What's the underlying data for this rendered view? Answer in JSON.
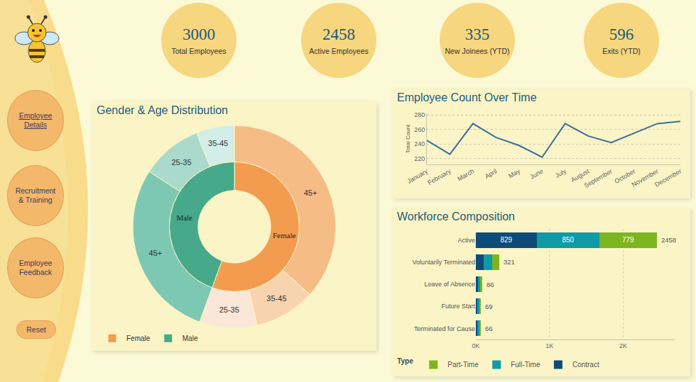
{
  "sidebar": {
    "nav": [
      "Employee Details",
      "Recruitment & Training",
      "Employee Feedback"
    ],
    "reset": "Reset"
  },
  "kpis": [
    {
      "value": 3000,
      "label": "Total Employees"
    },
    {
      "value": 2458,
      "label": "Active Employees"
    },
    {
      "value": 335,
      "label": "New Joinees (YTD)"
    },
    {
      "value": 596,
      "label": "Exits (YTD)"
    }
  ],
  "chart_data": [
    {
      "type": "pie",
      "title": "Gender & Age Distribution",
      "legend": "bottom left",
      "series": [
        {
          "name": "Female",
          "color": "#F39C50",
          "categories": [
            "45+",
            "35-45",
            "25-35"
          ],
          "values": [
            1100,
            292,
            275
          ],
          "colors": [
            "#F5BC85",
            "#F8D3B0",
            "#FBE7D7"
          ]
        },
        {
          "name": "Male",
          "color": "#45A98A",
          "categories": [
            "45+",
            "25-35",
            "35-45"
          ],
          "values": [
            858,
            292,
            183
          ],
          "colors": [
            "#7DC8B3",
            "#A9DACB",
            "#D3EDE8"
          ]
        }
      ]
    },
    {
      "type": "line",
      "title": "Employee Count Over Time",
      "ylabel": "Total Count",
      "categories": [
        "January",
        "February",
        "March",
        "April",
        "May",
        "June",
        "July",
        "August",
        "September",
        "October",
        "November",
        "December"
      ],
      "values": [
        245,
        226,
        268,
        249,
        238,
        222,
        268,
        251,
        242,
        255,
        268,
        271
      ],
      "color": "#3A6E9E",
      "ylim": [
        212,
        282
      ],
      "yticks": [
        220,
        240,
        260,
        280
      ],
      "grid": true
    },
    {
      "type": "bar",
      "title": "Workforce Composition",
      "orientation": "horizontal",
      "stacked": true,
      "data_labels": true,
      "categories": [
        "Active",
        "Voluntarily Terminated",
        "Leave of Absence",
        "Future Start",
        "Terminated for Cause"
      ],
      "series": [
        {
          "name": "Contract",
          "color": "#0D4C7A",
          "values": [
            829,
            105,
            30,
            22,
            20
          ]
        },
        {
          "name": "Full-Time",
          "color": "#0E9AA7",
          "values": [
            850,
            120,
            28,
            24,
            24
          ]
        },
        {
          "name": "Part-Time",
          "color": "#7DB51E",
          "values": [
            779,
            96,
            28,
            23,
            22
          ]
        }
      ],
      "totals": [
        2458,
        321,
        86,
        69,
        66
      ],
      "xlim": [
        0,
        2700
      ],
      "xticks": [
        {
          "value": 0,
          "label": "0K"
        },
        {
          "value": 1000,
          "label": "1K"
        },
        {
          "value": 2000,
          "label": "2K"
        }
      ],
      "grid": true,
      "legend": "bottom left",
      "legend_title": "Type"
    }
  ]
}
